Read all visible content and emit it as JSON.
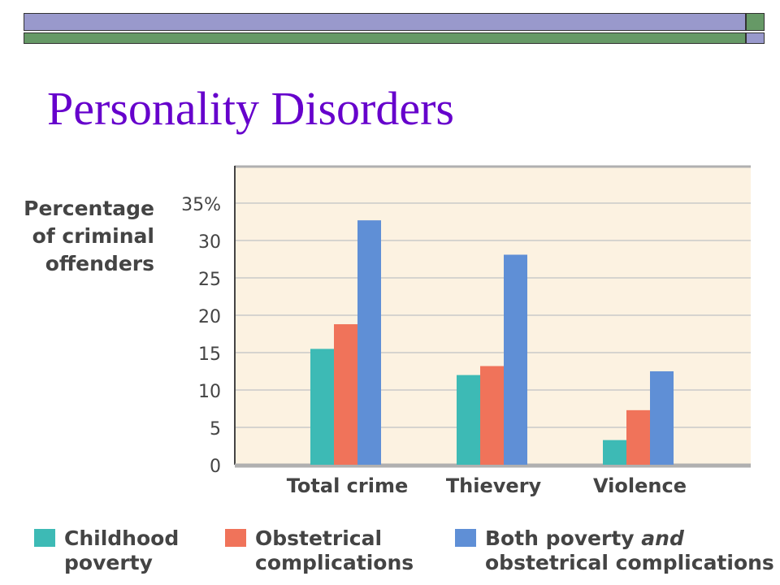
{
  "slide": {
    "title": "Personality Disorders",
    "colors": {
      "title": "#6600cc",
      "band_purple": "#9999cc",
      "band_green": "#669966"
    }
  },
  "chart_data": {
    "type": "bar",
    "ylabel_lines": [
      "Percentage",
      "of criminal",
      "offenders"
    ],
    "categories": [
      "Total crime",
      "Thievery",
      "Violence"
    ],
    "series": [
      {
        "name": "Childhood poverty",
        "color": "#3dbab5",
        "values": [
          15.5,
          12,
          3.3
        ]
      },
      {
        "name": "Obstetrical complications",
        "color": "#f0735a",
        "values": [
          18.8,
          13.2,
          7.3
        ]
      },
      {
        "name": "Both poverty and obstetrical complications",
        "color": "#5f8fd6",
        "values": [
          32.7,
          28.1,
          12.5
        ]
      }
    ],
    "yticks": [
      "0",
      "5",
      "10",
      "15",
      "20",
      "25",
      "30",
      "35%"
    ],
    "ylim": [
      0,
      35
    ],
    "grid": true,
    "plot_background": "#fcf2e1",
    "legend_position": "bottom",
    "legend": [
      {
        "color": "#3dbab5",
        "line1": "Childhood",
        "line2": "poverty"
      },
      {
        "color": "#f0735a",
        "line1": "Obstetrical",
        "line2": "complications"
      },
      {
        "color": "#5f8fd6",
        "line1_pre": "Both poverty ",
        "line1_em": "and",
        "line2": "obstetrical complications"
      }
    ]
  }
}
